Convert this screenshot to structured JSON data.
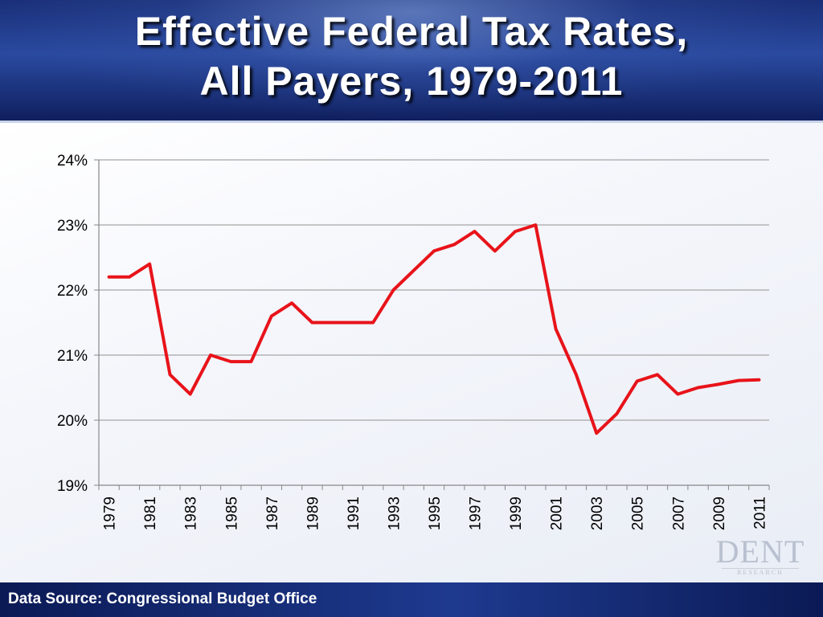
{
  "title": {
    "line1": "Effective Federal Tax Rates,",
    "line2": "All Payers, 1979-2011"
  },
  "footer": {
    "source": "Data Source: Congressional Budget Office"
  },
  "logo": {
    "main": "DENT",
    "sub": "RESEARCH"
  },
  "colors": {
    "line": "#e8131a",
    "grid": "#a6a6a6",
    "header": "#1a2f78",
    "footer": "#0b1a55"
  },
  "chart_data": {
    "type": "line",
    "title": "Effective Federal Tax Rates, All Payers, 1979-2011",
    "xlabel": "",
    "ylabel": "",
    "x": [
      1979,
      1980,
      1981,
      1982,
      1983,
      1984,
      1985,
      1986,
      1987,
      1988,
      1989,
      1990,
      1991,
      1992,
      1993,
      1994,
      1995,
      1996,
      1997,
      1998,
      1999,
      2000,
      2001,
      2002,
      2003,
      2004,
      2005,
      2006,
      2007,
      2008,
      2009,
      2010,
      2011
    ],
    "y": [
      22.2,
      22.2,
      22.4,
      20.7,
      20.4,
      21.0,
      20.9,
      20.9,
      21.6,
      21.8,
      21.5,
      21.5,
      21.5,
      21.5,
      22.0,
      22.3,
      22.6,
      22.7,
      22.9,
      22.6,
      22.9,
      23.0,
      21.4,
      20.7,
      19.8,
      20.1,
      20.6,
      20.7,
      20.4,
      20.5,
      20.55,
      20.61,
      20.62
    ],
    "ylim": [
      19,
      24
    ],
    "yticks": [
      19,
      20,
      21,
      22,
      23,
      24
    ],
    "ytick_labels": [
      "19%",
      "20%",
      "21%",
      "22%",
      "23%",
      "24%"
    ],
    "xtick_labels": [
      "1979",
      "1981",
      "1983",
      "1985",
      "1987",
      "1989",
      "1991",
      "1993",
      "1995",
      "1997",
      "1999",
      "2001",
      "2003",
      "2005",
      "2007",
      "2009",
      "2011"
    ],
    "grid": true,
    "legend": "none",
    "series": [
      {
        "color": "#e8131a"
      }
    ]
  }
}
